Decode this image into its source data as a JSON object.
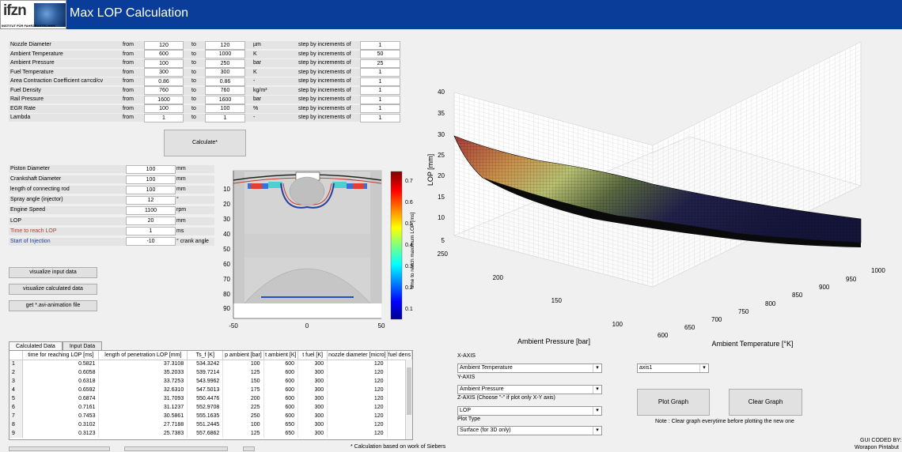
{
  "app": {
    "title": "Max LOP Calculation",
    "logo_text": "ifzn",
    "logo_subtitle": "INSTITUT FÜR FAHRZEUGTECHNIK"
  },
  "params": [
    {
      "label": "Nozzle Diameter",
      "from_label": "from",
      "from": "120",
      "to_label": "to",
      "to": "120",
      "unit": "µm",
      "step_label": "step by increments of",
      "step": "1"
    },
    {
      "label": "Ambient Temperature",
      "from_label": "from",
      "from": "600",
      "to_label": "to",
      "to": "1000",
      "unit": "K",
      "step_label": "step by increments of",
      "step": "50"
    },
    {
      "label": "Ambient Pressure",
      "from_label": "from",
      "from": "100",
      "to_label": "to",
      "to": "250",
      "unit": "bar",
      "step_label": "step by increments of",
      "step": "25"
    },
    {
      "label": "Fuel Temperature",
      "from_label": "from",
      "from": "300",
      "to_label": "to",
      "to": "300",
      "unit": "K",
      "step_label": "step by increments of",
      "step": "1"
    },
    {
      "label": "Area Contraction Coefficient ca=cd/cv",
      "from_label": "from",
      "from": "0.86",
      "to_label": "to",
      "to": "0.86",
      "unit": "-",
      "step_label": "step by increments of",
      "step": "1"
    },
    {
      "label": "Fuel Density",
      "from_label": "from",
      "from": "760",
      "to_label": "to",
      "to": "760",
      "unit": "kg/m³",
      "step_label": "step by increments of",
      "step": "1"
    },
    {
      "label": "Rail Pressure",
      "from_label": "from",
      "from": "1600",
      "to_label": "to",
      "to": "1600",
      "unit": "bar",
      "step_label": "step by increments of",
      "step": "1"
    },
    {
      "label": "EGR Rate",
      "from_label": "from",
      "from": "100",
      "to_label": "to",
      "to": "100",
      "unit": "%",
      "step_label": "step by increments of",
      "step": "1"
    },
    {
      "label": "Lambda",
      "from_label": "from",
      "from": "1",
      "to_label": "to",
      "to": "1",
      "unit": "-",
      "step_label": "step by increments of",
      "step": "1"
    }
  ],
  "calculate_label": "Calculate*",
  "engine": [
    {
      "label": "Piston Diameter",
      "value": "100",
      "unit": "mm"
    },
    {
      "label": "Crankshaft Diameter",
      "value": "100",
      "unit": "mm"
    },
    {
      "label": "length of connecting rod",
      "value": "100",
      "unit": "mm"
    },
    {
      "label": "Spray angle (injector)",
      "value": "12",
      "unit": "°"
    },
    {
      "label": "Engine Speed",
      "value": "1100",
      "unit": "rpm"
    },
    {
      "label": "LOP",
      "value": "20",
      "unit": "mm"
    },
    {
      "label": "Time to reach LOP",
      "value": "1",
      "unit": "ms",
      "color": "#c0392b"
    },
    {
      "label": "Start of Injection",
      "value": "-10",
      "unit": "° crank angle",
      "color": "#1f3fa0"
    }
  ],
  "buttons": {
    "visualize_input": "visualize input data",
    "visualize_calc": "visualize calculated data",
    "get_avi": "get *.avi-animation file",
    "plot_graph": "Plot Graph",
    "clear_graph": "Clear Graph"
  },
  "cylinder_plot": {
    "y_ticks": [
      "0",
      "10",
      "20",
      "30",
      "40",
      "50",
      "60",
      "70",
      "80",
      "90"
    ],
    "x_ticks": [
      "-50",
      "0",
      "50"
    ],
    "colorbar_ticks": [
      "0.7",
      "0.6",
      "0.5",
      "0.4",
      "0.3",
      "0.2",
      "0.1"
    ],
    "colorbar_label": "time to reach maximum LOP [ms]"
  },
  "surface_plot": {
    "z_label": "LOP [mm]",
    "z_ticks": [
      "40",
      "35",
      "30",
      "25",
      "20",
      "15",
      "10",
      "5"
    ],
    "pressure_label": "Ambient Pressure [bar]",
    "pressure_ticks": [
      "250",
      "200",
      "150",
      "100"
    ],
    "temp_label": "Ambient Temperature [°K]",
    "temp_ticks": [
      "1000",
      "950",
      "900",
      "850",
      "800",
      "750",
      "700",
      "650",
      "600"
    ]
  },
  "table": {
    "tabs": [
      "Calculated Data",
      "Input Data"
    ],
    "columns": [
      "",
      "time for reaching LOP [ms]",
      "length of penetration LOP [mm]",
      "Ts_f [K]",
      "p ambient [bar]",
      "t ambient [K]",
      "t fuel [K]",
      "nozzle diameter [micro]",
      "fuel dens"
    ],
    "rows": [
      [
        "1",
        "0.5821",
        "37.3108",
        "534.3242",
        "100",
        "600",
        "300",
        "120"
      ],
      [
        "2",
        "0.6058",
        "35.2033",
        "539.7214",
        "125",
        "600",
        "300",
        "120"
      ],
      [
        "3",
        "0.6318",
        "33.7253",
        "543.9962",
        "150",
        "600",
        "300",
        "120"
      ],
      [
        "4",
        "0.6592",
        "32.6310",
        "547.5013",
        "175",
        "600",
        "300",
        "120"
      ],
      [
        "5",
        "0.6874",
        "31.7093",
        "550.4476",
        "200",
        "600",
        "300",
        "120"
      ],
      [
        "6",
        "0.7161",
        "31.1237",
        "552.9708",
        "225",
        "600",
        "300",
        "120"
      ],
      [
        "7",
        "0.7453",
        "30.5861",
        "555.1635",
        "250",
        "600",
        "300",
        "120"
      ],
      [
        "8",
        "0.3102",
        "27.7188",
        "551.2445",
        "100",
        "650",
        "300",
        "120"
      ],
      [
        "9",
        "0.3123",
        "25.7383",
        "557.6862",
        "125",
        "650",
        "300",
        "120"
      ]
    ]
  },
  "axes_controls": {
    "x_axis_label": "X-AXIS",
    "x_axis_value": "Ambient Temperature",
    "y_axis_label": "Y-AXIS",
    "y_axis_value": "Ambient Pressure",
    "z_axis_label": "Z-AXIS  (Choose \"-\" if plot only X-Y axis)",
    "z_axis_value": "LOP",
    "plot_type_label": "Plot Type",
    "plot_type_value": "Surface (for 3D only)",
    "axis_select_value": "axis1"
  },
  "note": "Note : Clear graph everytime before plotting the new one",
  "footnote": "* Calculation based on work of Siebers",
  "credit_line1": "GUI CODED BY:",
  "credit_line2": "Worapon Pintabut"
}
